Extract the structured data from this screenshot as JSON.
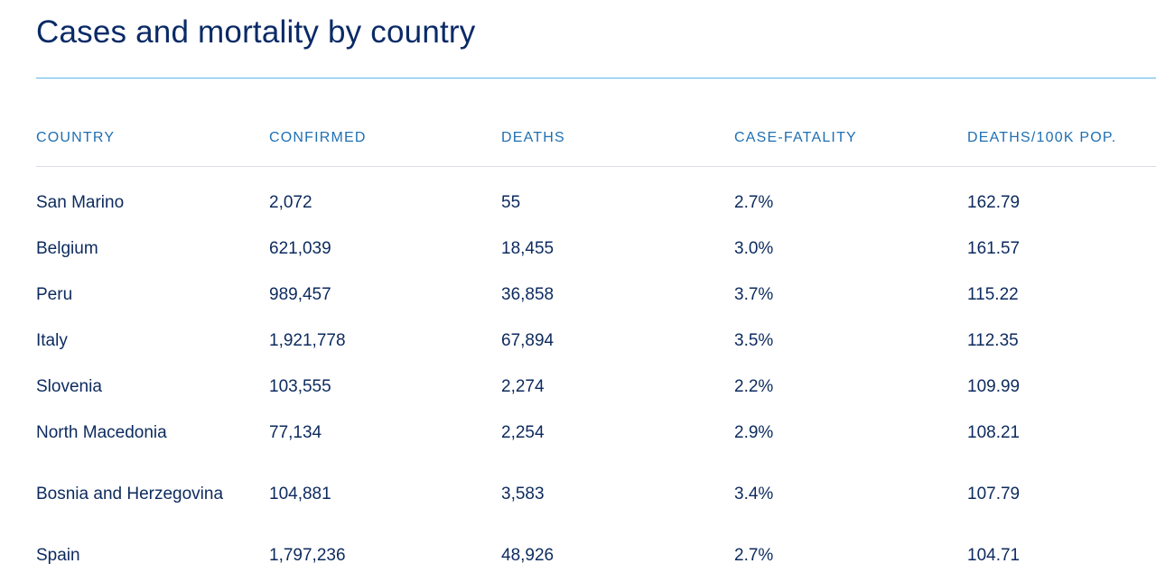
{
  "page": {
    "title": "Cases and mortality by country"
  },
  "table": {
    "columns": [
      "COUNTRY",
      "CONFIRMED",
      "DEATHS",
      "CASE-FATALITY",
      "DEATHS/100K POP."
    ],
    "rows": [
      [
        "San Marino",
        "2,072",
        "55",
        "2.7%",
        "162.79"
      ],
      [
        "Belgium",
        "621,039",
        "18,455",
        "3.0%",
        "161.57"
      ],
      [
        "Peru",
        "989,457",
        "36,858",
        "3.7%",
        "115.22"
      ],
      [
        "Italy",
        "1,921,778",
        "67,894",
        "3.5%",
        "112.35"
      ],
      [
        "Slovenia",
        "103,555",
        "2,274",
        "2.2%",
        "109.99"
      ],
      [
        "North Macedonia",
        "77,134",
        "2,254",
        "2.9%",
        "108.21"
      ],
      [
        "Bosnia and Herzegovina",
        "104,881",
        "3,583",
        "3.4%",
        "107.79"
      ],
      [
        "Spain",
        "1,797,236",
        "48,926",
        "2.7%",
        "104.71"
      ]
    ]
  },
  "colors": {
    "title": "#0a2a66",
    "header": "#1f6fb2",
    "text": "#0c2a5e",
    "rule": "#5cb8ea"
  }
}
